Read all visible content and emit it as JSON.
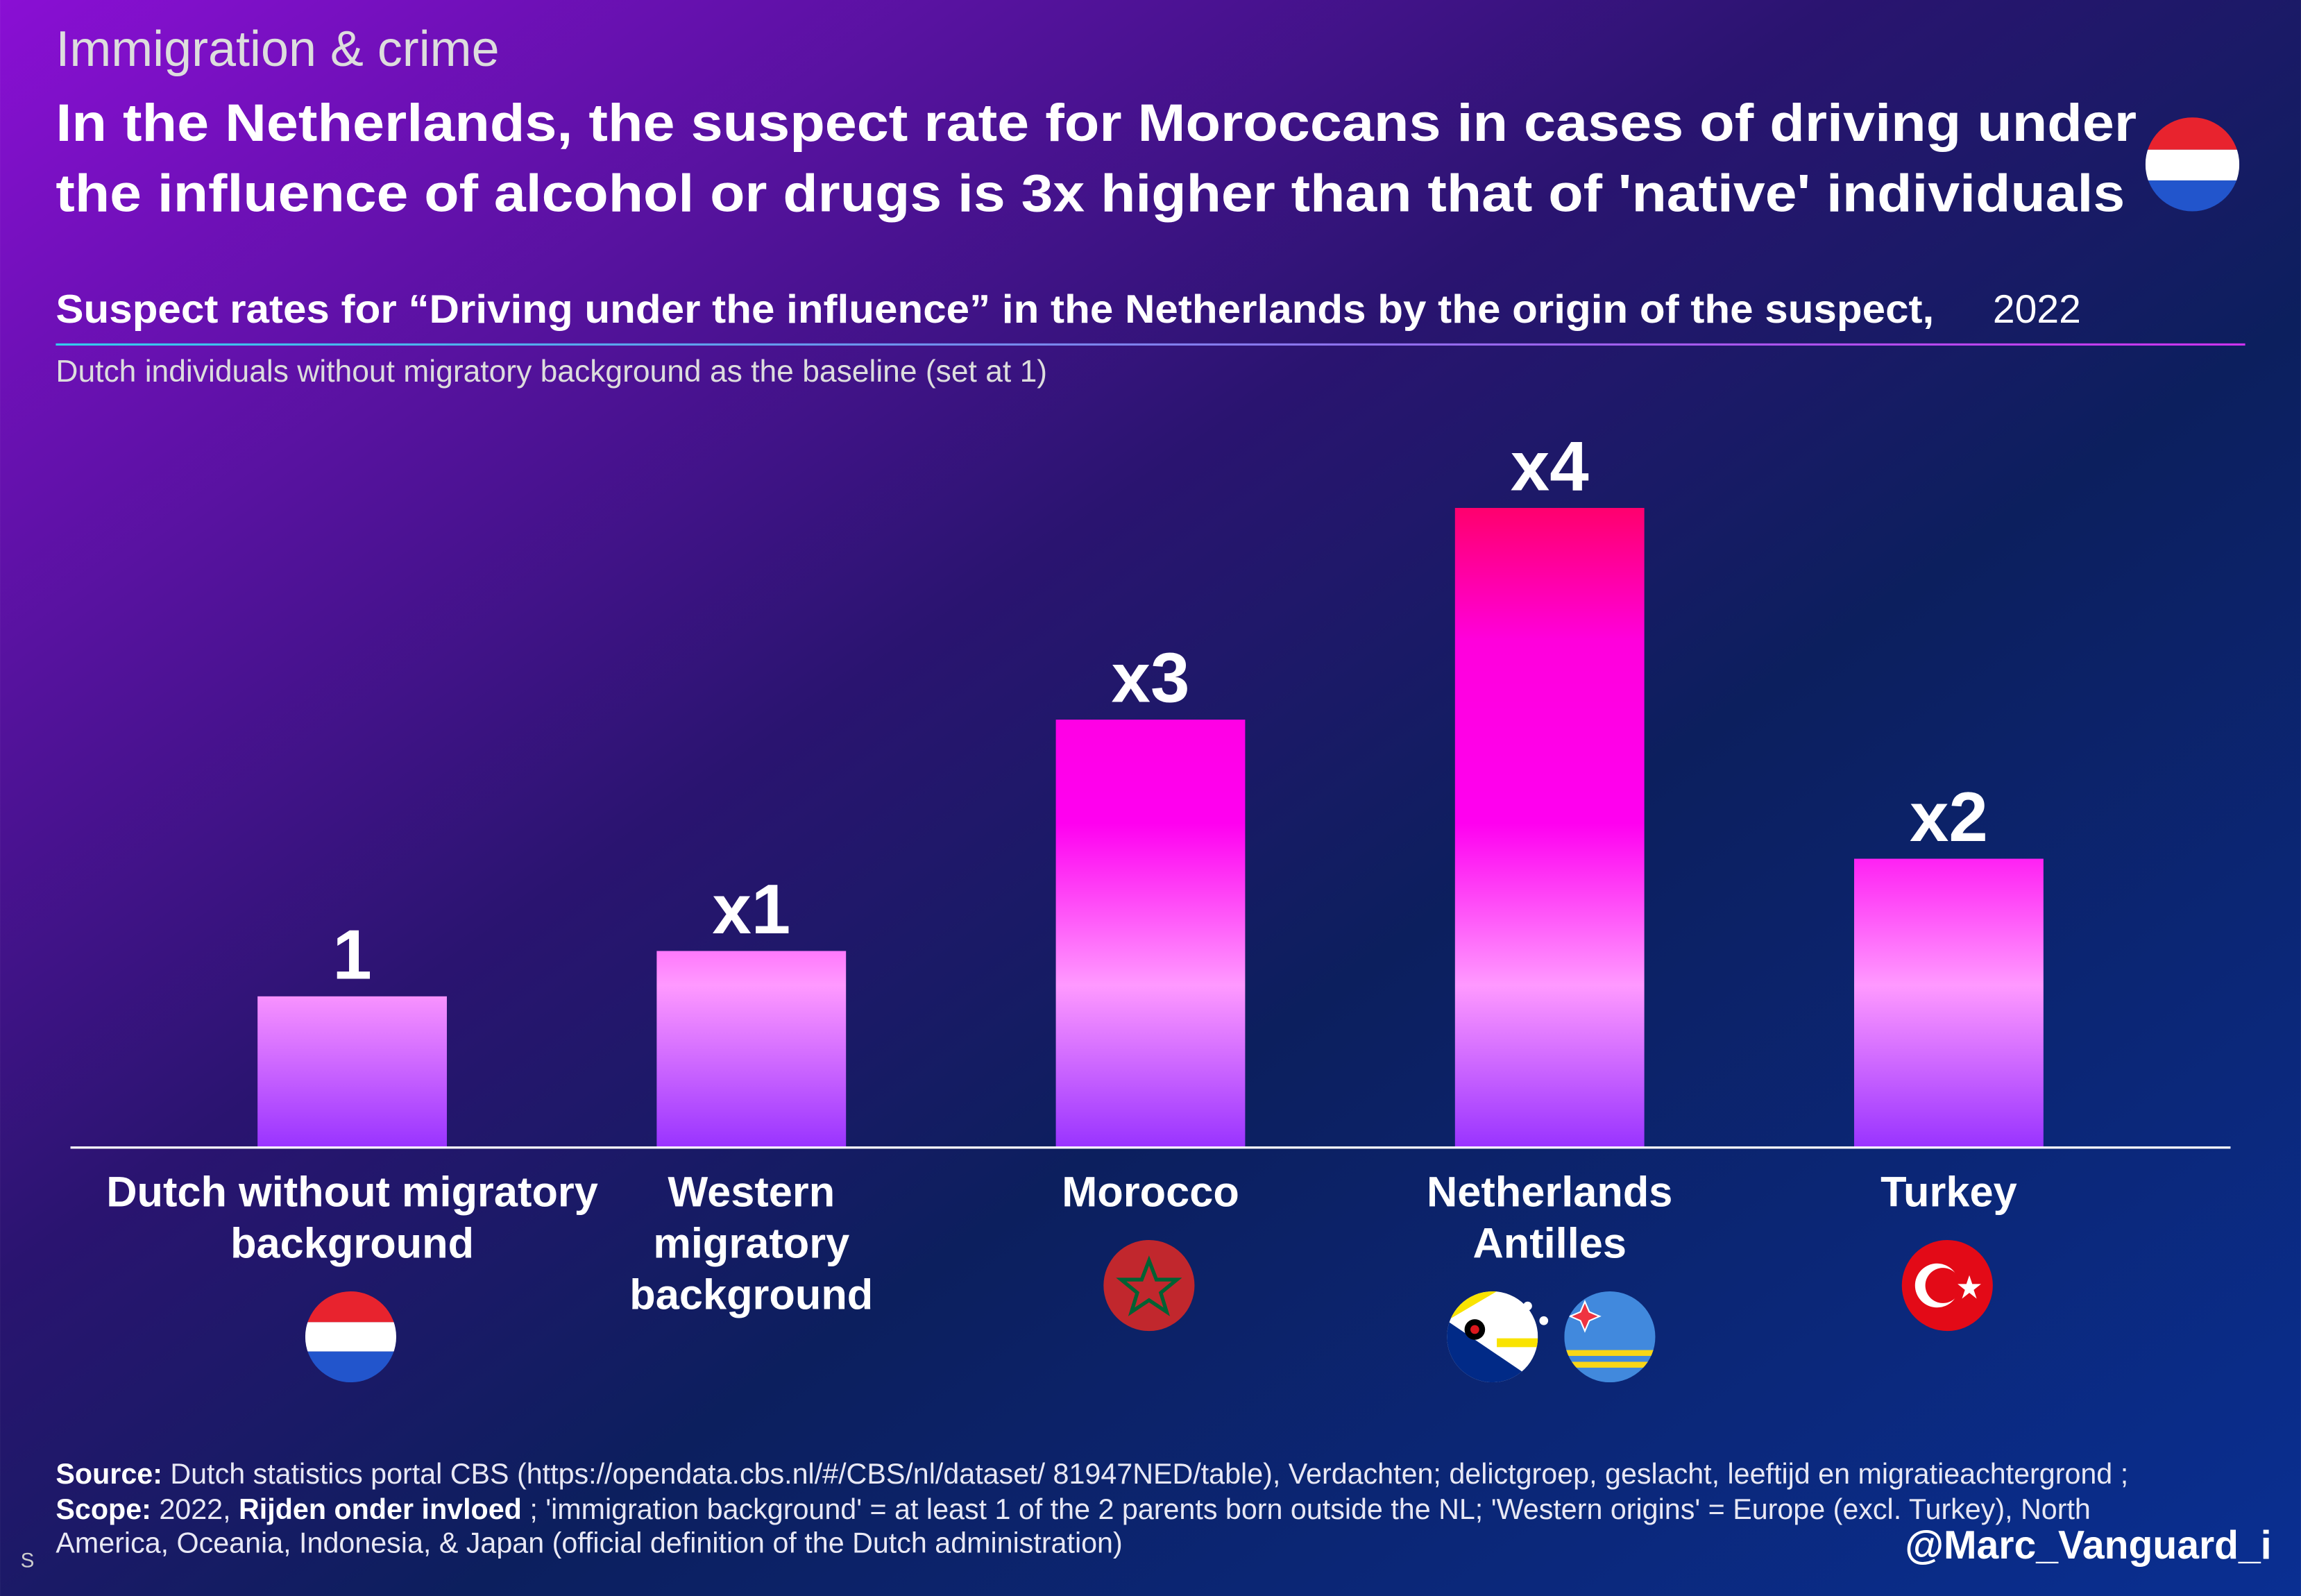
{
  "tag": "Immigration & crime",
  "headline": [
    "In the Netherlands, the suspect rate for Moroccans in cases of driving under",
    "the influence of alcohol or drugs is 3x higher than that of 'native' individuals"
  ],
  "chart_data": {
    "type": "bar",
    "title": "Suspect rates for “Driving under the influence” in the Netherlands by the origin of the suspect,",
    "title_year": "2022",
    "subtitle": "Dutch individuals without migratory background as the baseline (set at 1)",
    "categories": [
      "Dutch without migratory background",
      "Western migratory background",
      "Morocco",
      "Netherlands Antilles",
      "Turkey"
    ],
    "values": [
      1,
      1.3,
      2.83,
      4.23,
      1.91
    ],
    "value_labels": [
      "1",
      "x1",
      "x3",
      "x4",
      "x2"
    ],
    "ylim": [
      0,
      4.6
    ]
  },
  "footnote": {
    "source_label": "Source:",
    "source_text": " Dutch statistics portal CBS (https://opendata.cbs.nl/#/CBS/nl/dataset/ 81947NED/table), Verdachten; delictgroep, geslacht, leeftijd en migratieachtergrond ; ",
    "scope_label": "Scope:",
    "scope_text": " 2022, ",
    "topic": "Rijden onder invloed",
    "rest": " ; 'immigration background' = at least 1 of the 2 parents born outside the NL; 'Western origins' = Europe (excl. Turkey), North America, Oceania, Indonesia, & Japan (official definition of the Dutch administration)"
  },
  "handle": "@Marc_Vanguard_i",
  "corner": "S"
}
